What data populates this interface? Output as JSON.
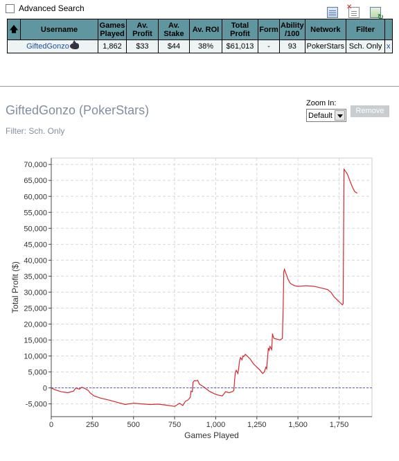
{
  "advanced_search": {
    "label": "Advanced Search",
    "checked": false
  },
  "toolbar": {
    "icons": [
      "export-table-icon",
      "delete-table-icon",
      "refresh-table-icon"
    ]
  },
  "table": {
    "headers": [
      "Username",
      "Games Played",
      "Av. Profit",
      "Av. Stake",
      "Av. ROI",
      "Total Profit",
      "Form",
      "Ability /100",
      "Network",
      "Filter"
    ],
    "row": {
      "username": "GiftedGonzo",
      "games_played": "1,862",
      "av_profit": "$33",
      "av_stake": "$44",
      "av_roi": "38%",
      "total_profit": "$61,013",
      "form": "-",
      "ability": "93",
      "network": "PokerStars",
      "filter": "Sch. Only",
      "remove_link": "x"
    }
  },
  "panel": {
    "title": "GiftedGonzo (PokerStars)",
    "filter_text": "Filter: Sch. Only",
    "zoom_label": "Zoom In:",
    "zoom_value": "Default",
    "remove_label": "Remove"
  },
  "colors": {
    "header_bg": "#5f969f",
    "line": "#d9262a",
    "zero_line": "#5555dd",
    "muted_text": "#7f8fa0"
  },
  "chart_data": {
    "type": "line",
    "xlabel": "Games Played",
    "ylabel": "Total Profit ($)",
    "xlim": [
      0,
      1950
    ],
    "ylim": [
      -9000,
      72000
    ],
    "xticks": [
      0,
      250,
      500,
      750,
      1000,
      1250,
      1500,
      1750
    ],
    "yticks": [
      -5000,
      0,
      5000,
      10000,
      15000,
      20000,
      25000,
      30000,
      35000,
      40000,
      45000,
      50000,
      55000,
      60000,
      65000,
      70000
    ],
    "xtick_labels": [
      "0",
      "250",
      "500",
      "750",
      "1,000",
      "1,250",
      "1,500",
      "1,750"
    ],
    "ytick_labels": [
      "-5,000",
      "0",
      "5,000",
      "10,000",
      "15,000",
      "20,000",
      "25,000",
      "30,000",
      "35,000",
      "40,000",
      "45,000",
      "50,000",
      "55,000",
      "60,000",
      "65,000",
      "70,000"
    ],
    "grid": true,
    "reference_line": 0,
    "series": [
      {
        "x": [
          0,
          20,
          60,
          100,
          135,
          150,
          170,
          185,
          200,
          215,
          225,
          235,
          260,
          300,
          350,
          400,
          450,
          470,
          500,
          550,
          600,
          650,
          700,
          750,
          780,
          800,
          815,
          830,
          845,
          850,
          858,
          862,
          870,
          880,
          890,
          900,
          930,
          960,
          990,
          1010,
          1040,
          1060,
          1080,
          1100,
          1110,
          1115,
          1120,
          1125,
          1135,
          1145,
          1150,
          1160,
          1165,
          1170,
          1180,
          1195,
          1210,
          1230,
          1250,
          1270,
          1285,
          1295,
          1305,
          1310,
          1320,
          1325,
          1330,
          1340,
          1345,
          1350,
          1355,
          1370,
          1390,
          1405,
          1410,
          1414,
          1418,
          1425,
          1430,
          1440,
          1450,
          1460,
          1480,
          1500,
          1550,
          1600,
          1650,
          1680,
          1700,
          1720,
          1740,
          1760,
          1770,
          1775,
          1780,
          1790,
          1800,
          1815,
          1830,
          1845,
          1860
        ],
        "y": [
          0,
          -500,
          -1200,
          -1500,
          -1000,
          0,
          -400,
          200,
          -100,
          -500,
          -800,
          -1500,
          -2500,
          -3200,
          -3800,
          -4500,
          -5200,
          -5000,
          -4800,
          -5000,
          -5200,
          -5100,
          -5400,
          -5800,
          -4800,
          -5500,
          -4200,
          -3800,
          -3000,
          -1000,
          -1200,
          1800,
          2300,
          2200,
          2400,
          1200,
          200,
          -1000,
          -1800,
          -2200,
          -2500,
          -1200,
          -1500,
          -1200,
          -800,
          2500,
          5000,
          5500,
          4500,
          8500,
          9500,
          8800,
          10000,
          9800,
          10500,
          9800,
          9000,
          7500,
          6500,
          5500,
          4500,
          5000,
          6500,
          6000,
          12500,
          11800,
          13000,
          12000,
          17000,
          16000,
          15500,
          15300,
          15000,
          15500,
          25000,
          36500,
          37200,
          36000,
          35500,
          34000,
          33000,
          32500,
          32000,
          31800,
          32000,
          31800,
          31200,
          30800,
          30000,
          28500,
          27500,
          26500,
          26000,
          26400,
          68500,
          67800,
          67000,
          65000,
          63000,
          61500,
          61013
        ]
      }
    ]
  }
}
